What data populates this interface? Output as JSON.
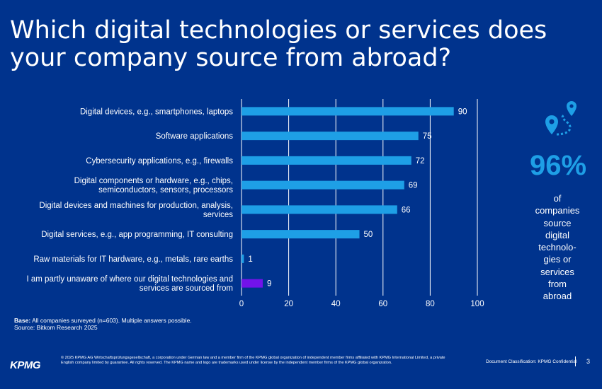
{
  "title": "Which digital technologies or services does your company source from abroad?",
  "chart_data": {
    "type": "bar",
    "orientation": "horizontal",
    "categories": [
      "Digital devices, e.g., smartphones, laptops",
      "Software applications",
      "Cybersecurity applications, e.g., firewalls",
      "Digital components or hardware, e.g., chips, semiconductors, sensors, processors",
      "Digital devices and machines for production, analysis, services",
      "Digital services, e.g., app programming, IT consulting",
      "Raw materials for IT hardware, e.g., metals, rare earths",
      "I am partly unaware of where our digital technologies and services are sourced from"
    ],
    "category_lines": [
      [
        "Digital devices, e.g., smartphones, laptops"
      ],
      [
        "Software applications"
      ],
      [
        "Cybersecurity applications, e.g., firewalls"
      ],
      [
        "Digital components or hardware, e.g., chips,",
        "semiconductors, sensors, processors"
      ],
      [
        "Digital devices and machines for production, analysis,",
        "services"
      ],
      [
        "Digital services, e.g., app programming, IT consulting"
      ],
      [
        "Raw materials for IT hardware, e.g., metals, rare earths"
      ],
      [
        "I am partly unaware of where our digital technologies and",
        "services are sourced from"
      ]
    ],
    "values": [
      90,
      75,
      72,
      69,
      66,
      50,
      1,
      9
    ],
    "bar_colors": [
      "#1E9FE6",
      "#1E9FE6",
      "#1E9FE6",
      "#1E9FE6",
      "#1E9FE6",
      "#1E9FE6",
      "#1E9FE6",
      "#7213EA"
    ],
    "xlim": [
      0,
      100
    ],
    "xticks": [
      0,
      20,
      40,
      60,
      80,
      100
    ],
    "grid": true,
    "xlabel": "",
    "ylabel": ""
  },
  "stat": {
    "icon": "map-route-icon",
    "value": "96%",
    "text_lines": [
      "of",
      "companies",
      "source",
      "digital",
      "technolo-",
      "gies or",
      "services",
      "from",
      "abroad"
    ]
  },
  "base": {
    "label": "Base:",
    "text": "All companies surveyed (n=603). Multiple answers possible.",
    "source_label": "Source:",
    "source_text": "Bitkom Research 2025"
  },
  "footer": {
    "logo": "KPMG",
    "legal": "© 2025 KPMG AG Wirtschaftsprüfungsgesellschaft, a corporation under German law and a member firm of the KPMG global organization of independent member firms affiliated with KPMG International Limited, a private English company limited by guarantee. All rights reserved. The KPMG name and logo are trademarks used under license by the independent member firms of the KPMG global organization.",
    "classification": "Document Classification: KPMG Confidential",
    "page": "3"
  },
  "colors": {
    "background": "#00338D",
    "accent": "#1E9FE6",
    "highlight": "#7213EA"
  }
}
